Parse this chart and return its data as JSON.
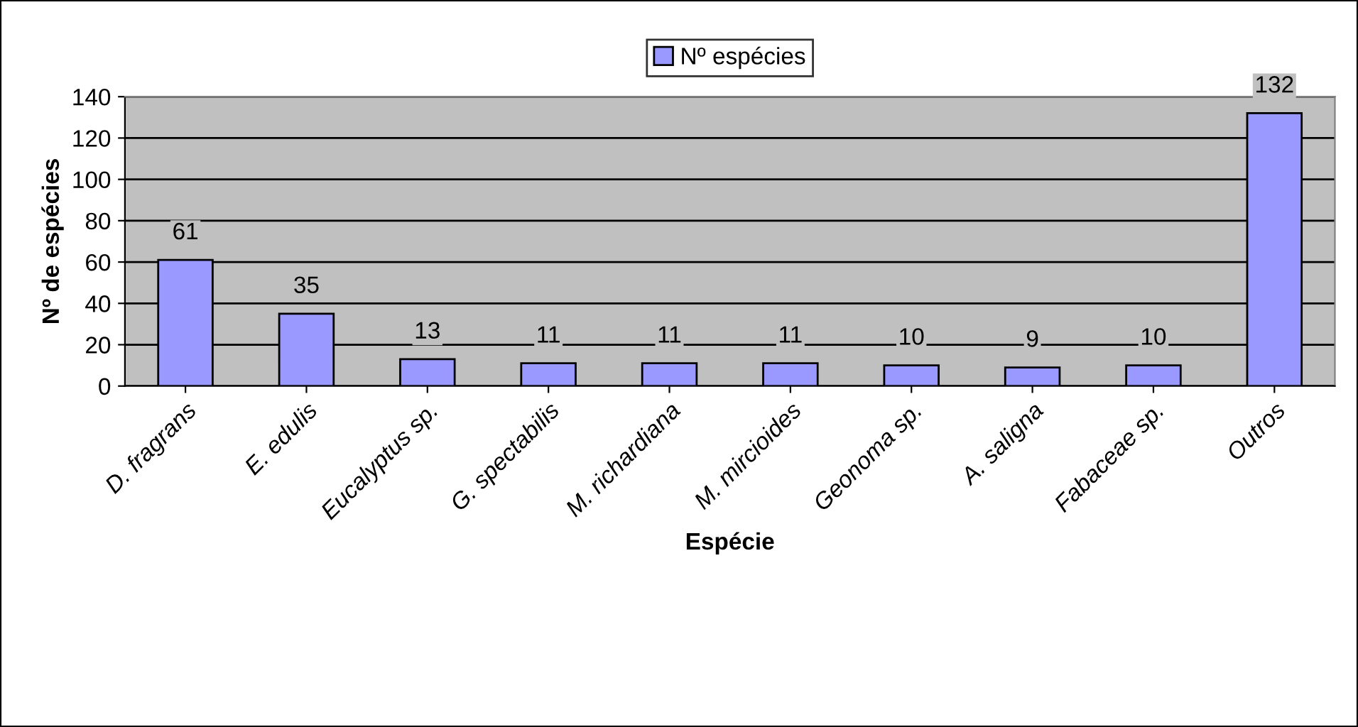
{
  "chart_data": {
    "type": "bar",
    "categories": [
      "D. fragrans",
      "E. edulis",
      "Eucalyptus sp.",
      "G. spectabilis",
      "M. richardiana",
      "M. mircioides",
      "Geonoma sp.",
      "A. saligna",
      "Fabaceae sp.",
      "Outros"
    ],
    "series": [
      {
        "name": "Nº espécies",
        "color": "#9999ff",
        "values": [
          61,
          35,
          13,
          11,
          11,
          11,
          10,
          9,
          10,
          132
        ]
      }
    ],
    "xlabel": "Espécie",
    "ylabel": "Nº de espécies",
    "ylim": [
      0,
      140
    ],
    "yticks": [
      0,
      20,
      40,
      60,
      80,
      100,
      120,
      140
    ],
    "grid": "y",
    "legend": "top",
    "data_labels": true
  }
}
